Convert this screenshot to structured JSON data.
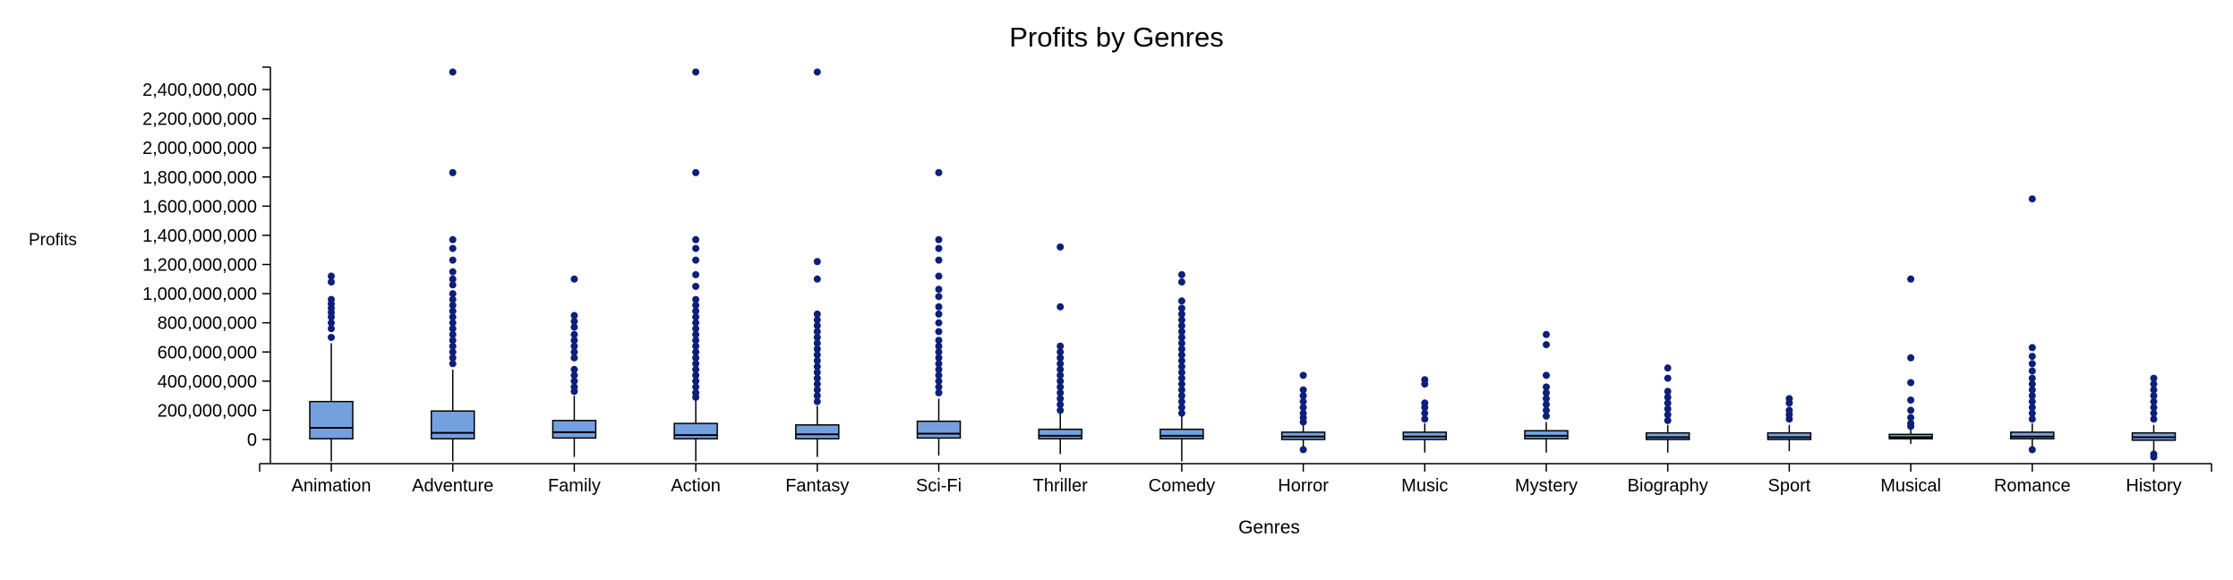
{
  "chart_data": {
    "type": "boxplot",
    "title": "Profits by Genres",
    "xlabel": "Genres",
    "ylabel": "Profits",
    "ylim": [
      -150000000,
      2550000000
    ],
    "yticks": [
      0,
      200000000,
      400000000,
      600000000,
      800000000,
      1000000000,
      1200000000,
      1400000000,
      1600000000,
      1800000000,
      2000000000,
      2200000000,
      2400000000
    ],
    "ytick_labels": [
      "0",
      "200,000,000",
      "400,000,000",
      "600,000,000",
      "800,000,000",
      "1,000,000,000",
      "1,200,000,000",
      "1,400,000,000",
      "1,600,000,000",
      "1,800,000,000",
      "2,000,000,000",
      "2,200,000,000",
      "2,400,000,000"
    ],
    "colors": {
      "box_fill": "#75a0df",
      "outlier": "#0d1f7a",
      "stroke": "#000000"
    },
    "categories": [
      "Animation",
      "Adventure",
      "Family",
      "Action",
      "Fantasy",
      "Sci-Fi",
      "Thriller",
      "Comedy",
      "Horror",
      "Music",
      "Mystery",
      "Biography",
      "Sport",
      "Musical",
      "Romance",
      "History"
    ],
    "boxes": [
      {
        "whisker_low": -150000000,
        "q1": 5000000,
        "median": 80000000,
        "q3": 260000000,
        "whisker_high": 660000000,
        "outliers": [
          1120000000,
          1080000000,
          960000000,
          930000000,
          900000000,
          870000000,
          840000000,
          800000000,
          760000000,
          700000000
        ]
      },
      {
        "whisker_low": -150000000,
        "q1": 5000000,
        "median": 45000000,
        "q3": 195000000,
        "whisker_high": 480000000,
        "outliers": [
          2520000000,
          1830000000,
          1370000000,
          1310000000,
          1230000000,
          1150000000,
          1100000000,
          1060000000,
          1000000000,
          960000000,
          920000000,
          880000000,
          840000000,
          800000000,
          760000000,
          720000000,
          680000000,
          640000000,
          600000000,
          560000000,
          520000000
        ]
      },
      {
        "whisker_low": -120000000,
        "q1": 10000000,
        "median": 50000000,
        "q3": 130000000,
        "whisker_high": 300000000,
        "outliers": [
          1100000000,
          850000000,
          810000000,
          770000000,
          720000000,
          680000000,
          640000000,
          600000000,
          560000000,
          480000000,
          440000000,
          400000000,
          360000000,
          330000000
        ]
      },
      {
        "whisker_low": -150000000,
        "q1": 5000000,
        "median": 30000000,
        "q3": 110000000,
        "whisker_high": 270000000,
        "outliers": [
          2520000000,
          1830000000,
          1370000000,
          1310000000,
          1230000000,
          1130000000,
          1050000000,
          960000000,
          920000000,
          880000000,
          840000000,
          800000000,
          760000000,
          720000000,
          680000000,
          640000000,
          600000000,
          560000000,
          520000000,
          480000000,
          440000000,
          400000000,
          360000000,
          320000000,
          290000000
        ]
      },
      {
        "whisker_low": -120000000,
        "q1": 5000000,
        "median": 35000000,
        "q3": 100000000,
        "whisker_high": 230000000,
        "outliers": [
          2520000000,
          1220000000,
          1100000000,
          860000000,
          820000000,
          780000000,
          740000000,
          700000000,
          660000000,
          620000000,
          580000000,
          540000000,
          500000000,
          460000000,
          420000000,
          380000000,
          340000000,
          300000000,
          260000000
        ]
      },
      {
        "whisker_low": -110000000,
        "q1": 10000000,
        "median": 40000000,
        "q3": 125000000,
        "whisker_high": 280000000,
        "outliers": [
          1830000000,
          1370000000,
          1310000000,
          1230000000,
          1120000000,
          1030000000,
          980000000,
          910000000,
          860000000,
          800000000,
          740000000,
          680000000,
          640000000,
          600000000,
          560000000,
          520000000,
          480000000,
          440000000,
          400000000,
          360000000,
          320000000
        ]
      },
      {
        "whisker_low": -100000000,
        "q1": 5000000,
        "median": 25000000,
        "q3": 70000000,
        "whisker_high": 180000000,
        "outliers": [
          1320000000,
          910000000,
          640000000,
          600000000,
          560000000,
          520000000,
          480000000,
          440000000,
          400000000,
          360000000,
          320000000,
          280000000,
          240000000,
          200000000
        ]
      },
      {
        "whisker_low": -150000000,
        "q1": 5000000,
        "median": 25000000,
        "q3": 70000000,
        "whisker_high": 160000000,
        "outliers": [
          1130000000,
          1080000000,
          950000000,
          900000000,
          860000000,
          820000000,
          780000000,
          740000000,
          700000000,
          660000000,
          620000000,
          580000000,
          540000000,
          500000000,
          460000000,
          420000000,
          380000000,
          340000000,
          300000000,
          260000000,
          220000000,
          180000000
        ]
      },
      {
        "whisker_low": -70000000,
        "q1": 0,
        "median": 20000000,
        "q3": 50000000,
        "whisker_high": 100000000,
        "outliers": [
          440000000,
          340000000,
          300000000,
          260000000,
          220000000,
          180000000,
          150000000,
          120000000,
          -70000000
        ]
      },
      {
        "whisker_low": -90000000,
        "q1": 0,
        "median": 20000000,
        "q3": 50000000,
        "whisker_high": 110000000,
        "outliers": [
          410000000,
          380000000,
          250000000,
          220000000,
          180000000,
          140000000
        ]
      },
      {
        "whisker_low": -90000000,
        "q1": 5000000,
        "median": 25000000,
        "q3": 60000000,
        "whisker_high": 120000000,
        "outliers": [
          720000000,
          650000000,
          440000000,
          360000000,
          320000000,
          280000000,
          240000000,
          200000000,
          160000000
        ]
      },
      {
        "whisker_low": -90000000,
        "q1": 0,
        "median": 15000000,
        "q3": 45000000,
        "whisker_high": 100000000,
        "outliers": [
          490000000,
          420000000,
          330000000,
          290000000,
          250000000,
          210000000,
          170000000,
          130000000
        ]
      },
      {
        "whisker_low": -80000000,
        "q1": 0,
        "median": 15000000,
        "q3": 45000000,
        "whisker_high": 100000000,
        "outliers": [
          280000000,
          250000000,
          200000000,
          170000000,
          140000000
        ]
      },
      {
        "whisker_low": -30000000,
        "q1": 5000000,
        "median": 15000000,
        "q3": 35000000,
        "whisker_high": 70000000,
        "outliers": [
          1100000000,
          560000000,
          390000000,
          270000000,
          200000000,
          150000000,
          110000000,
          90000000
        ]
      },
      {
        "whisker_low": -70000000,
        "q1": 5000000,
        "median": 20000000,
        "q3": 50000000,
        "whisker_high": 110000000,
        "outliers": [
          1650000000,
          630000000,
          570000000,
          520000000,
          470000000,
          420000000,
          380000000,
          340000000,
          300000000,
          260000000,
          220000000,
          180000000,
          140000000,
          -70000000
        ]
      },
      {
        "whisker_low": -110000000,
        "q1": -5000000,
        "median": 15000000,
        "q3": 45000000,
        "whisker_high": 100000000,
        "outliers": [
          420000000,
          380000000,
          340000000,
          300000000,
          260000000,
          220000000,
          180000000,
          140000000,
          -100000000,
          -120000000
        ]
      }
    ]
  }
}
